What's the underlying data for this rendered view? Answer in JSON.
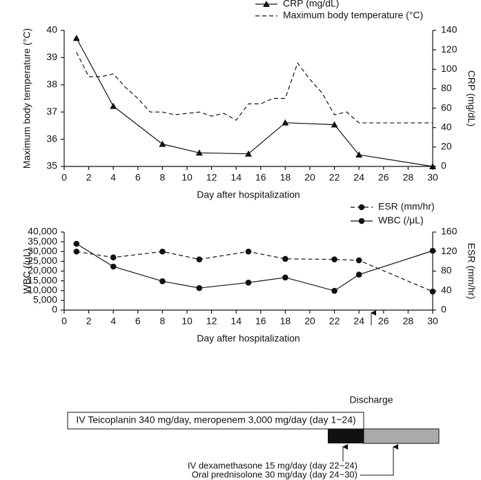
{
  "chart_data": [
    {
      "type": "line",
      "x_label": "Day after hospitalization",
      "y_label": "Maximum body temperature (°C)",
      "y2_label": "CRP (mg/dL)",
      "xlim": [
        0,
        30
      ],
      "xticks": [
        0,
        2,
        4,
        6,
        8,
        10,
        12,
        14,
        16,
        18,
        20,
        22,
        24,
        26,
        28,
        30
      ],
      "ylim": [
        35,
        40
      ],
      "yticks": [
        35,
        36,
        37,
        38,
        39,
        40
      ],
      "y2lim": [
        0,
        140
      ],
      "y2ticks": [
        0,
        20,
        40,
        60,
        80,
        100,
        120,
        140
      ],
      "series": [
        {
          "name": "CRP (mg/dL)",
          "color": "#111111",
          "axis": "y2",
          "line_style": "solid",
          "marker": "triangle",
          "x": [
            1,
            4,
            8,
            11,
            15,
            18,
            22,
            24,
            30
          ],
          "values": [
            132,
            62,
            23,
            14,
            13,
            45,
            43,
            12,
            0
          ]
        },
        {
          "name": "Maximum body temperature (°C)",
          "color": "#111111",
          "axis": "y",
          "line_style": "dashed",
          "marker": "none",
          "x": [
            1,
            2,
            3,
            4,
            5,
            6,
            7,
            8,
            9,
            10,
            11,
            12,
            13,
            14,
            15,
            16,
            17,
            18,
            19,
            20,
            21,
            22,
            23,
            24,
            25,
            26,
            27,
            28,
            29,
            30
          ],
          "values": [
            39.2,
            38.3,
            38.3,
            38.4,
            37.9,
            37.5,
            37.0,
            37.0,
            36.9,
            36.95,
            37.0,
            36.85,
            36.95,
            36.7,
            37.3,
            37.3,
            37.5,
            37.5,
            38.8,
            38.2,
            37.7,
            36.9,
            37.0,
            36.6,
            36.6,
            36.6,
            36.6,
            36.6,
            36.6,
            36.6
          ]
        }
      ]
    },
    {
      "type": "line",
      "x_label": "Day after hospitalization",
      "y_label": "WBC (/μL)",
      "y2_label": "ESR (mm/hr)",
      "xlim": [
        0,
        30
      ],
      "xticks": [
        0,
        2,
        4,
        6,
        8,
        10,
        12,
        14,
        16,
        18,
        20,
        22,
        24,
        26,
        28,
        30
      ],
      "ylim": [
        0,
        40000
      ],
      "yticks": [
        0,
        {
          "value": 5000,
          "label": "5,000"
        },
        {
          "value": 10000,
          "label": "10,000"
        },
        {
          "value": 15000,
          "label": "15,000"
        },
        {
          "value": 20000,
          "label": "20,000"
        },
        {
          "value": 25000,
          "label": "25,000"
        },
        {
          "value": 30000,
          "label": "30,000"
        },
        {
          "value": 35000,
          "label": "35,000"
        },
        {
          "value": 40000,
          "label": "40,000"
        }
      ],
      "y2lim": [
        0,
        160
      ],
      "y2ticks": [
        0,
        40,
        80,
        120,
        160
      ],
      "annotations": [
        {
          "text": "Discharge",
          "x": 25
        }
      ],
      "series": [
        {
          "name": "ESR (mm/hr)",
          "color": "#111111",
          "axis": "y2",
          "line_style": "dashed",
          "marker": "circle",
          "x": [
            1,
            4,
            8,
            11,
            15,
            18,
            22,
            24,
            30
          ],
          "values": [
            120,
            108,
            120,
            104,
            120,
            105,
            104,
            102,
            38
          ]
        },
        {
          "name": "WBC (/μL)",
          "color": "#111111",
          "axis": "y",
          "line_style": "solid",
          "marker": "circle",
          "x": [
            1,
            4,
            8,
            11,
            15,
            18,
            22,
            24,
            30
          ],
          "values": [
            34000,
            22300,
            14800,
            11300,
            14100,
            16700,
            9900,
            18200,
            30400
          ]
        }
      ]
    }
  ],
  "timeline": {
    "antibiotics": "IV Teicoplanin 340 mg/day, meropenem 3,000 mg/day (day 1~24)",
    "dexamethasone": "IV dexamethasone 15 mg/day (day 22~24)",
    "prednisolone": "Oral prednisolone 30 mg/day (day 24~30)"
  }
}
